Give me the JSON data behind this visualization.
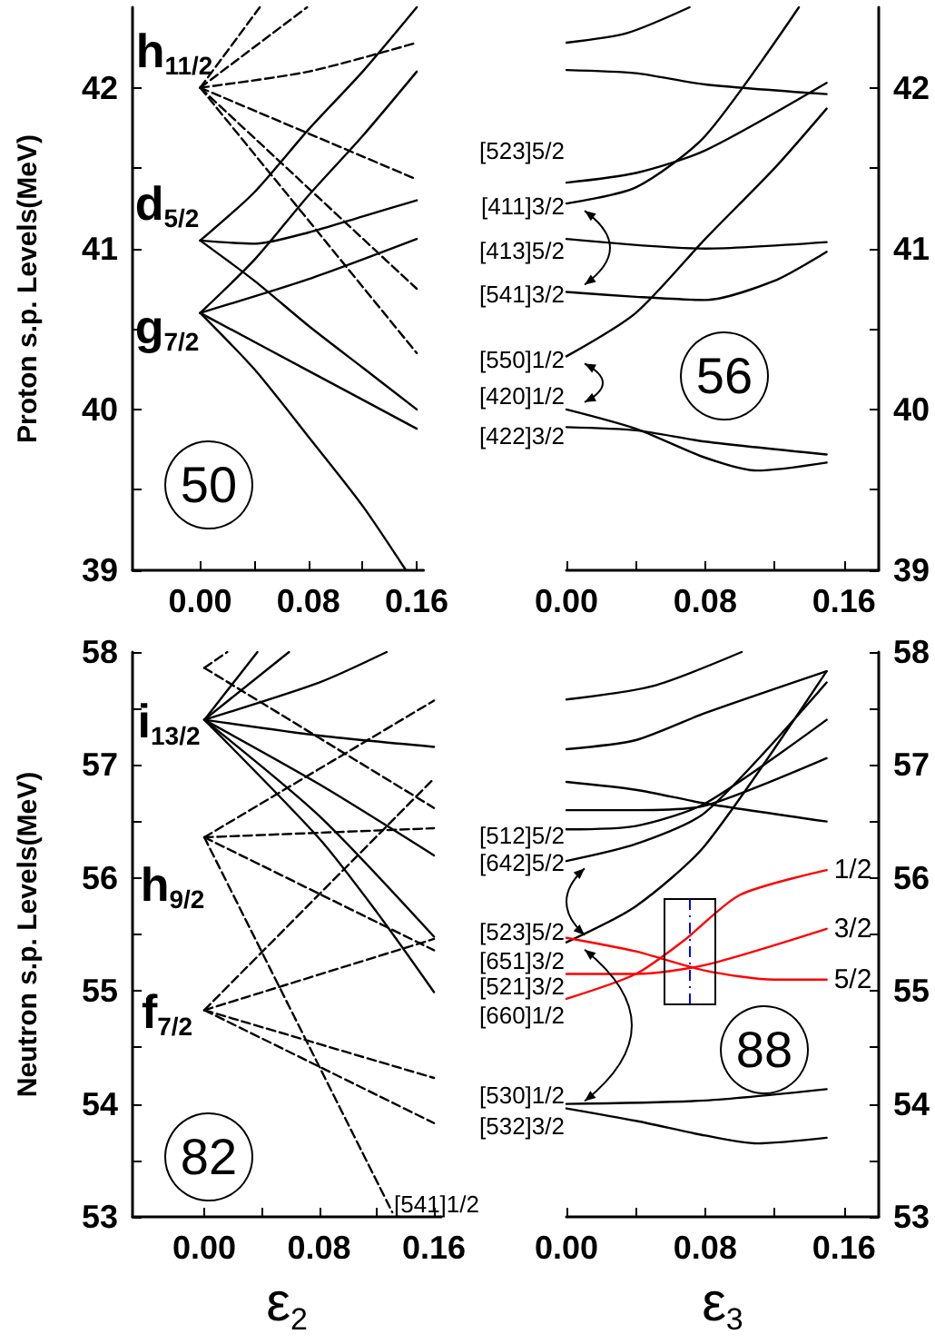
{
  "chart_data": [
    {
      "type": "line",
      "color": "#000000",
      "marker": "none",
      "ylabel": "Proton s.p. Levels(MeV)",
      "xlim": [
        -0.05,
        0.165
      ],
      "ylim": [
        39,
        42.5
      ],
      "xticks": [
        {
          "value": 0,
          "label": "0.00"
        },
        {
          "value": 0.04,
          "label": null
        },
        {
          "value": 0.08,
          "label": "0.08"
        },
        {
          "value": 0.12,
          "label": null
        },
        {
          "value": 0.16,
          "label": "0.16"
        }
      ],
      "yticks": [
        39,
        {
          "value": 39.5,
          "label": null
        },
        40,
        {
          "value": 40.5,
          "label": null
        },
        41,
        {
          "value": 41.5,
          "label": null
        },
        42
      ],
      "series": [
        {
          "x": [
            0,
            0.04,
            0.08,
            0.12,
            0.16
          ],
          "values": [
            41.05,
            41.35,
            41.74,
            42.1,
            42.5
          ]
        },
        {
          "x": [
            0,
            0.04,
            0.08,
            0.12,
            0.16
          ],
          "values": [
            41.05,
            41.03,
            41.1,
            41.2,
            41.3
          ]
        },
        {
          "x": [
            0,
            0.04,
            0.08,
            0.12,
            0.16
          ],
          "values": [
            41.05,
            40.8,
            40.52,
            40.26,
            40.0
          ]
        },
        {
          "x": [
            0,
            0.04,
            0.08,
            0.12,
            0.16
          ],
          "values": [
            40.6,
            40.93,
            41.33,
            41.7,
            42.1
          ]
        },
        {
          "x": [
            0,
            0.08,
            0.16
          ],
          "values": [
            40.6,
            40.81,
            41.06
          ]
        },
        {
          "x": [
            0,
            0.08,
            0.16
          ],
          "values": [
            40.6,
            40.24,
            39.88
          ]
        },
        {
          "x": [
            0,
            0.04,
            0.08,
            0.12,
            0.152
          ],
          "values": [
            40.6,
            40.25,
            39.83,
            39.4,
            39.0
          ]
        },
        {
          "x": [
            0,
            0.044
          ],
          "values": [
            42.0,
            42.5
          ],
          "line_style": "dashed"
        },
        {
          "x": [
            0,
            0.079
          ],
          "values": [
            42.0,
            42.5
          ],
          "line_style": "dashed"
        },
        {
          "x": [
            0,
            0.08,
            0.16
          ],
          "values": [
            42.0,
            42.1,
            42.28
          ],
          "line_style": "dashed"
        },
        {
          "x": [
            0,
            0.16
          ],
          "values": [
            42.0,
            41.43
          ],
          "line_style": "dashed"
        },
        {
          "x": [
            0,
            0.16
          ],
          "values": [
            42.0,
            40.75
          ],
          "line_style": "dashed"
        },
        {
          "x": [
            0,
            0.16
          ],
          "values": [
            42.0,
            40.35
          ],
          "line_style": "dashed"
        }
      ],
      "annotations": [
        "h$_{11/2}$",
        "d$_{5/2}$",
        "g$_{7/2}$",
        "50"
      ]
    },
    {
      "type": "line",
      "color": "#000000",
      "marker": "none",
      "xlim": [
        0,
        0.18
      ],
      "ylim": [
        39,
        42.5
      ],
      "xticks": [
        {
          "value": 0,
          "label": "0.00"
        },
        {
          "value": 0.04,
          "label": null
        },
        {
          "value": 0.08,
          "label": "0.08"
        },
        {
          "value": 0.12,
          "label": null
        },
        {
          "value": 0.16,
          "label": "0.16"
        }
      ],
      "yticks": [
        39,
        {
          "value": 39.5,
          "label": null
        },
        40,
        {
          "value": 40.5,
          "label": null
        },
        41,
        {
          "value": 41.5,
          "label": null
        },
        42
      ],
      "series": [
        {
          "x": [
            0,
            0.035,
            0.071
          ],
          "values": [
            42.28,
            42.34,
            42.5
          ]
        },
        {
          "x": [
            0,
            0.04,
            0.08,
            0.15
          ],
          "values": [
            42.11,
            42.09,
            42.02,
            41.96
          ]
        },
        {
          "x": [
            0,
            0.04,
            0.08,
            0.15
          ],
          "values": [
            41.41,
            41.47,
            41.61,
            42.03
          ]
        },
        {
          "x": [
            0,
            0.04,
            0.08,
            0.134
          ],
          "values": [
            41.28,
            41.38,
            41.7,
            42.5
          ]
        },
        {
          "x": [
            0,
            0.08,
            0.15
          ],
          "values": [
            41.06,
            41.0,
            41.04
          ]
        },
        {
          "x": [
            0,
            0.04,
            0.08,
            0.12,
            0.15
          ],
          "values": [
            40.73,
            40.7,
            40.68,
            40.8,
            40.98
          ]
        },
        {
          "x": [
            0,
            0.04,
            0.08,
            0.12,
            0.15
          ],
          "values": [
            40.33,
            40.6,
            41.06,
            41.5,
            41.87
          ]
        },
        {
          "x": [
            0,
            0.04,
            0.08,
            0.11,
            0.15
          ],
          "values": [
            40.0,
            39.88,
            39.7,
            39.62,
            39.67
          ]
        },
        {
          "x": [
            0,
            0.04,
            0.08,
            0.15
          ],
          "values": [
            39.89,
            39.87,
            39.8,
            39.72
          ]
        }
      ],
      "annotations": [
        "[523]5/2",
        {
          "text": "[411]3/2",
          "x": 0,
          "y": 41.28
        },
        "[413]5/2",
        "[541]3/2",
        "[550]1/2",
        "[420]1/2",
        "[422]3/2",
        "56"
      ]
    },
    {
      "type": "line",
      "color": "#000000",
      "marker": "none",
      "ylabel": "Neutron s.p. Levels(MeV)",
      "xlabel": "ε$_{2}$",
      "xlim": [
        -0.05,
        0.165
      ],
      "ylim": [
        53,
        58
      ],
      "xticks": [
        {
          "value": 0,
          "label": "0.00"
        },
        {
          "value": 0.04,
          "label": null
        },
        {
          "value": 0.08,
          "label": "0.08"
        },
        {
          "value": 0.12,
          "label": null
        },
        {
          "value": 0.16,
          "label": "0.16"
        }
      ],
      "yticks": [
        53,
        {
          "value": 53.5,
          "label": null
        },
        54,
        {
          "value": 54.5,
          "label": null
        },
        55,
        {
          "value": 55.5,
          "label": null
        },
        56,
        {
          "value": 56.5,
          "label": null
        },
        57,
        {
          "value": 57.5,
          "label": null
        },
        58
      ],
      "series": [
        {
          "x": [
            0,
            0.037
          ],
          "values": [
            57.4,
            58
          ]
        },
        {
          "x": [
            0,
            0.059
          ],
          "values": [
            57.4,
            58
          ]
        },
        {
          "x": [
            0,
            0.08,
            0.127
          ],
          "values": [
            57.4,
            57.73,
            58
          ]
        },
        {
          "x": [
            0,
            0.08,
            0.16
          ],
          "values": [
            57.4,
            57.26,
            57.16
          ]
        },
        {
          "x": [
            0,
            0.08,
            0.16
          ],
          "values": [
            57.4,
            56.83,
            56.2
          ]
        },
        {
          "x": [
            0,
            0.08,
            0.16
          ],
          "values": [
            57.4,
            56.55,
            55.48
          ]
        },
        {
          "x": [
            0,
            0.08,
            0.12,
            0.16
          ],
          "values": [
            57.4,
            56.35,
            55.7,
            54.99
          ]
        },
        {
          "x": [
            0,
            0.016
          ],
          "values": [
            57.86,
            58
          ],
          "line_style": "dashed"
        },
        {
          "x": [
            0,
            0.16
          ],
          "values": [
            57.86,
            56.62
          ],
          "line_style": "dashed"
        },
        {
          "x": [
            0,
            0.16
          ],
          "values": [
            56.36,
            57.57
          ],
          "line_style": "dashed"
        },
        {
          "x": [
            0,
            0.16
          ],
          "values": [
            56.36,
            56.44
          ],
          "line_style": "dashed"
        },
        {
          "x": [
            0,
            0.16
          ],
          "values": [
            56.36,
            55.36
          ],
          "line_style": "dashed"
        },
        {
          "x": [
            0,
            0.131
          ],
          "values": [
            56.36,
            53.04
          ],
          "line_style": "dashed"
        },
        {
          "x": [
            0,
            0.16
          ],
          "values": [
            54.83,
            56.88
          ],
          "line_style": "dashed"
        },
        {
          "x": [
            0,
            0.16
          ],
          "values": [
            54.83,
            55.46
          ],
          "line_style": "dashed"
        },
        {
          "x": [
            0,
            0.16
          ],
          "values": [
            54.83,
            54.23
          ],
          "line_style": "dashed"
        },
        {
          "x": [
            0,
            0.16
          ],
          "values": [
            54.83,
            53.83
          ],
          "line_style": "dashed"
        }
      ],
      "annotations": [
        "i$_{13/2}$",
        "h$_{9/2}$",
        "f$_{7/2}$",
        "82",
        "[541]1/2"
      ]
    },
    {
      "type": "line",
      "color": "#000000",
      "marker": "none",
      "xlabel": "ε$_{3}$",
      "xlim": [
        0,
        0.18
      ],
      "ylim": [
        53,
        58
      ],
      "xticks": [
        {
          "value": 0,
          "label": "0.00"
        },
        {
          "value": 0.04,
          "label": null
        },
        {
          "value": 0.08,
          "label": "0.08"
        },
        {
          "value": 0.12,
          "label": null
        },
        {
          "value": 0.16,
          "label": "0.16"
        }
      ],
      "yticks": [
        53,
        {
          "value": 53.5,
          "label": null
        },
        54,
        {
          "value": 54.5,
          "label": null
        },
        55,
        {
          "value": 55.5,
          "label": null
        },
        56,
        {
          "value": 56.5,
          "label": null
        },
        57,
        {
          "value": 57.5,
          "label": null
        },
        58
      ],
      "series": [
        {
          "x": [
            0,
            0.05,
            0.101
          ],
          "values": [
            57.58,
            57.7,
            58
          ]
        },
        {
          "x": [
            0,
            0.04,
            0.08,
            0.15
          ],
          "values": [
            57.14,
            57.22,
            57.46,
            57.83
          ]
        },
        {
          "x": [
            0,
            0.04,
            0.08,
            0.15
          ],
          "values": [
            56.85,
            56.78,
            56.66,
            56.5
          ]
        },
        {
          "x": [
            0,
            0.04,
            0.08,
            0.15
          ],
          "values": [
            56.6,
            56.6,
            56.64,
            57.06
          ]
        },
        {
          "x": [
            0,
            0.04,
            0.08,
            0.15
          ],
          "values": [
            56.43,
            56.46,
            56.66,
            57.4
          ]
        },
        {
          "x": [
            0,
            0.04,
            0.08,
            0.15
          ],
          "values": [
            56.15,
            56.3,
            56.58,
            57.73
          ]
        },
        {
          "x": [
            0,
            0.04,
            0.08,
            0.15
          ],
          "values": [
            55.43,
            55.75,
            56.29,
            57.83
          ]
        },
        {
          "x": [
            0,
            0.08,
            0.15
          ],
          "values": [
            54.0,
            54.03,
            54.13
          ]
        },
        {
          "x": [
            0,
            0.04,
            0.08,
            0.11,
            0.15
          ],
          "values": [
            53.96,
            53.85,
            53.72,
            53.65,
            53.7
          ]
        },
        {
          "name": "1/2",
          "color": "#ff0000",
          "x": [
            0,
            0.04,
            0.068,
            0.1,
            0.15
          ],
          "values": [
            54.93,
            55.15,
            55.45,
            55.85,
            56.07
          ]
        },
        {
          "name": "3/2",
          "color": "#ff0000",
          "x": [
            0,
            0.04,
            0.08,
            0.15
          ],
          "values": [
            55.15,
            55.15,
            55.23,
            55.55
          ]
        },
        {
          "name": "5/2",
          "color": "#ff0000",
          "x": [
            0,
            0.04,
            0.08,
            0.12,
            0.15
          ],
          "values": [
            55.47,
            55.35,
            55.18,
            55.1,
            55.1
          ]
        }
      ],
      "annotations": [
        "[512]5/2",
        {
          "text": "[642]5/2",
          "x": 0,
          "y": 56.15
        },
        "[523]5/2",
        "[651]3/2",
        "[521]3/2",
        "[660]1/2",
        "[530]1/2",
        "[532]3/2",
        "88"
      ]
    }
  ]
}
